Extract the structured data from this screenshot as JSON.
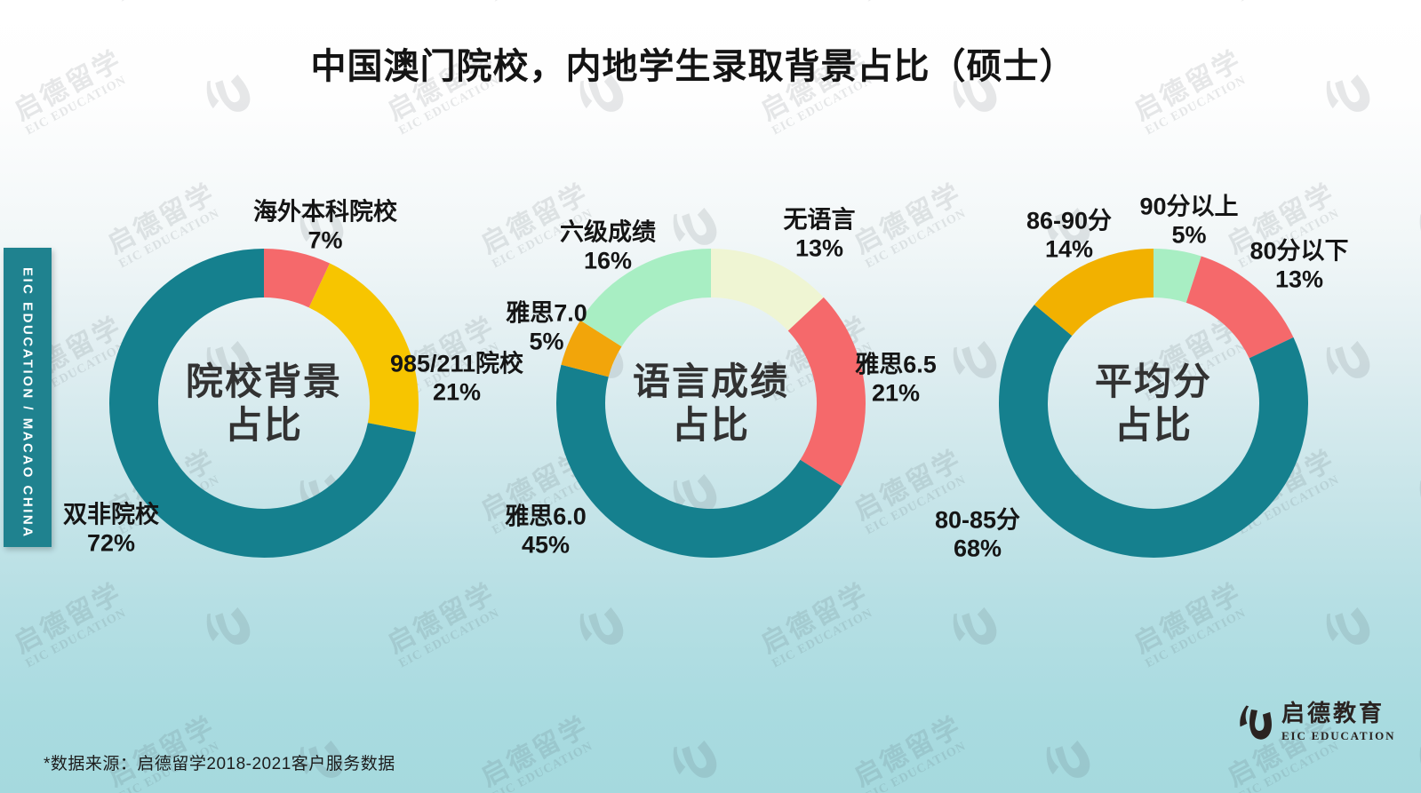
{
  "title": "中国澳门院校，内地学生录取背景占比（硕士）",
  "sidebar": {
    "label": "EIC EDUCATION  /  MACAO CHINA"
  },
  "watermark": {
    "cn": "启德留学",
    "en": "EIC EDUCATION"
  },
  "footer": {
    "source_note": "*数据来源：启德留学2018-2021客户服务数据",
    "logo_cn": "启德教育",
    "logo_en": "EIC EDUCATION"
  },
  "colors": {
    "teal": "#15808E",
    "pink": "#F5696B",
    "yellow": "#F7C500",
    "orange": "#F2A50A",
    "yellow_deep": "#F2B100",
    "mint": "#A8EEC3",
    "cream": "#EFF5D3",
    "sidebar_teal": "#1F828F"
  },
  "chart_data": [
    {
      "type": "pie",
      "subtype": "donut",
      "title": "院校背景占比",
      "center_label": [
        "院校背景",
        "占比"
      ],
      "start_angle_deg": -90,
      "direction": "clockwise",
      "segments": [
        {
          "label": "海外本科院校",
          "pct": "7%",
          "value": 7,
          "color": "#F5696B"
        },
        {
          "label": "985/211院校",
          "pct": "21%",
          "value": 21,
          "color": "#F7C500"
        },
        {
          "label": "双非院校",
          "pct": "72%",
          "value": 72,
          "color": "#15808E"
        }
      ]
    },
    {
      "type": "pie",
      "subtype": "donut",
      "title": "语言成绩占比",
      "center_label": [
        "语言成绩",
        "占比"
      ],
      "start_angle_deg": -90,
      "direction": "clockwise",
      "segments": [
        {
          "label": "无语言",
          "pct": "13%",
          "value": 13,
          "color": "#EFF5D3"
        },
        {
          "label": "雅思6.5",
          "pct": "21%",
          "value": 21,
          "color": "#F5696B"
        },
        {
          "label": "雅思6.0",
          "pct": "45%",
          "value": 45,
          "color": "#15808E"
        },
        {
          "label": "雅思7.0",
          "pct": "5%",
          "value": 5,
          "color": "#F2A50A"
        },
        {
          "label": "六级成绩",
          "pct": "16%",
          "value": 16,
          "color": "#A8EEC3"
        }
      ]
    },
    {
      "type": "pie",
      "subtype": "donut",
      "title": "平均分占比",
      "center_label": [
        "平均分",
        "占比"
      ],
      "start_angle_deg": -90,
      "direction": "clockwise",
      "segments": [
        {
          "label": "90分以上",
          "pct": "5%",
          "value": 5,
          "color": "#A8EEC3"
        },
        {
          "label": "80分以下",
          "pct": "13%",
          "value": 13,
          "color": "#F5696B"
        },
        {
          "label": "80-85分",
          "pct": "68%",
          "value": 68,
          "color": "#15808E"
        },
        {
          "label": "86-90分",
          "pct": "14%",
          "value": 14,
          "color": "#F2B100"
        }
      ]
    }
  ]
}
